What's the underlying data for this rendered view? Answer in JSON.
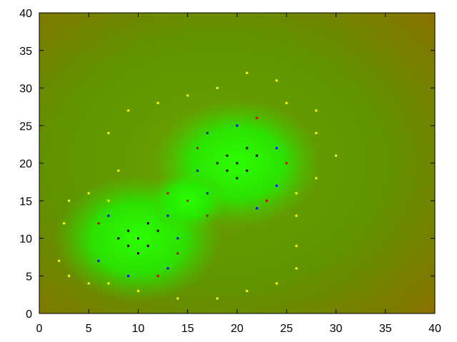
{
  "chart_data": {
    "type": "scatter",
    "title": "",
    "xlabel": "",
    "ylabel": "",
    "xlim": [
      0,
      40
    ],
    "ylim": [
      0,
      40
    ],
    "x_ticks": [
      "0",
      "5",
      "10",
      "15",
      "20",
      "25",
      "30",
      "35",
      "40"
    ],
    "y_ticks": [
      "0",
      "5",
      "10",
      "15",
      "20",
      "25",
      "30",
      "35",
      "40"
    ],
    "grid": false,
    "legend": "none",
    "background": {
      "inner": "#6aa300",
      "outer": "#8a7000",
      "glow": "#2cff00"
    },
    "clusters": [
      {
        "center": [
          10,
          10
        ],
        "core_spread": 1.8
      },
      {
        "center": [
          20,
          20
        ],
        "core_spread": 2.0
      }
    ],
    "series": [
      {
        "color": "#000000",
        "points": [
          [
            10,
            10
          ],
          [
            9,
            11
          ],
          [
            11,
            9
          ],
          [
            8,
            10
          ],
          [
            12,
            11
          ],
          [
            10,
            8
          ],
          [
            9,
            9
          ],
          [
            11,
            12
          ],
          [
            20,
            20
          ],
          [
            19,
            21
          ],
          [
            21,
            19
          ],
          [
            18,
            20
          ],
          [
            22,
            21
          ],
          [
            20,
            18
          ],
          [
            19,
            19
          ],
          [
            21,
            22
          ]
        ]
      },
      {
        "color": "#ffff00",
        "points": [
          [
            2,
            7
          ],
          [
            2.5,
            12
          ],
          [
            3,
            15
          ],
          [
            5,
            16
          ],
          [
            7,
            15
          ],
          [
            8,
            19
          ],
          [
            7,
            24
          ],
          [
            9,
            27
          ],
          [
            12,
            28
          ],
          [
            15,
            29
          ],
          [
            18,
            30
          ],
          [
            21,
            32
          ],
          [
            24,
            31
          ],
          [
            25,
            28
          ],
          [
            28,
            27
          ],
          [
            28,
            24
          ],
          [
            30,
            21
          ],
          [
            28,
            18
          ],
          [
            26,
            16
          ],
          [
            26,
            13
          ],
          [
            26,
            9
          ],
          [
            26,
            6
          ],
          [
            24,
            4
          ],
          [
            21,
            3
          ],
          [
            18,
            2
          ],
          [
            14,
            2
          ],
          [
            10,
            3
          ],
          [
            7,
            4
          ],
          [
            5,
            4
          ],
          [
            3,
            5
          ]
        ]
      },
      {
        "color": "#0000ff",
        "points": [
          [
            7,
            13
          ],
          [
            13,
            13
          ],
          [
            14,
            10
          ],
          [
            13,
            6
          ],
          [
            9,
            5
          ],
          [
            6,
            7
          ],
          [
            17,
            16
          ],
          [
            22,
            14
          ],
          [
            24,
            17
          ],
          [
            24,
            22
          ],
          [
            20,
            25
          ],
          [
            17,
            24
          ],
          [
            16,
            19
          ]
        ]
      },
      {
        "color": "#cc0000",
        "points": [
          [
            6,
            12
          ],
          [
            14,
            8
          ],
          [
            12,
            5
          ],
          [
            15,
            15
          ],
          [
            17,
            13
          ],
          [
            23,
            15
          ],
          [
            25,
            20
          ],
          [
            22,
            26
          ],
          [
            16,
            22
          ],
          [
            13,
            16
          ]
        ]
      }
    ]
  }
}
